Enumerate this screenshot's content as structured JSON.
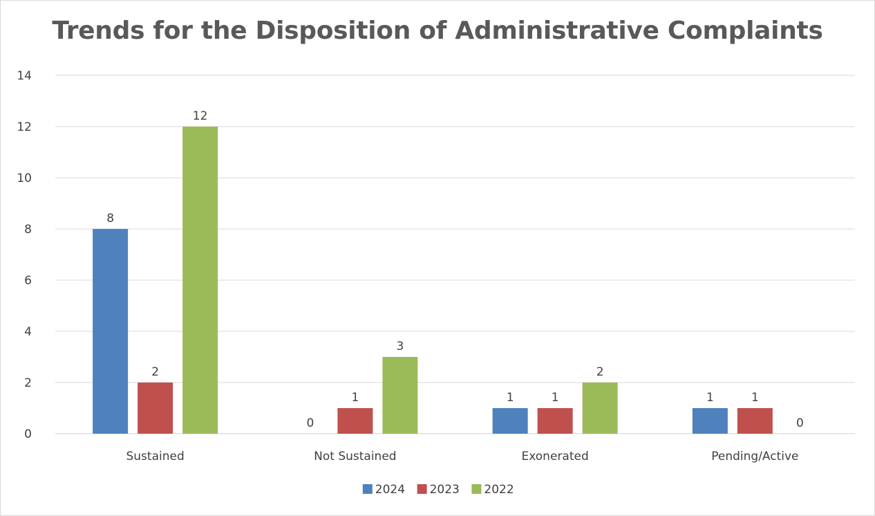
{
  "chart_data": {
    "type": "bar",
    "title": "Trends for the Disposition of Administrative Complaints",
    "categories": [
      "Sustained",
      "Not Sustained",
      "Exonerated",
      "Pending/Active"
    ],
    "series": [
      {
        "name": "2024",
        "color": "#4f81bd",
        "values": [
          8,
          0,
          1,
          1
        ]
      },
      {
        "name": "2023",
        "color": "#c0504d",
        "values": [
          2,
          1,
          1,
          1
        ]
      },
      {
        "name": "2022",
        "color": "#9bbb59",
        "values": [
          12,
          3,
          2,
          0
        ]
      }
    ],
    "ylim": [
      0,
      14
    ],
    "yticks": [
      0,
      2,
      4,
      6,
      8,
      10,
      12,
      14
    ],
    "grid": true,
    "legend": "bottom",
    "data_labels": true
  }
}
